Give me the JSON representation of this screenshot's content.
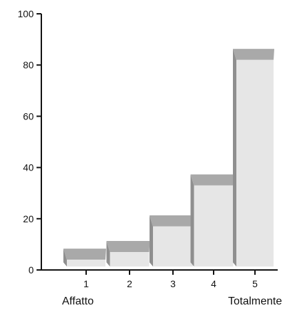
{
  "chart_data": {
    "type": "bar",
    "style": "3d",
    "categories": [
      "1",
      "2",
      "3",
      "4",
      "5"
    ],
    "values": [
      4,
      7,
      17,
      33,
      82
    ],
    "title": "",
    "xlabel": "",
    "ylabel": "",
    "ylim": [
      0,
      100
    ],
    "yticks": [
      0,
      20,
      40,
      60,
      80,
      100
    ],
    "x_end_labels": {
      "left": "Affatto",
      "right": "Totalmente"
    },
    "grid": false,
    "legend": "none",
    "colors": {
      "bar_front": "#e6e6e6",
      "bar_top": "#a9a9a9",
      "bar_side": "#8f8f8f",
      "axis": "#111111"
    }
  }
}
